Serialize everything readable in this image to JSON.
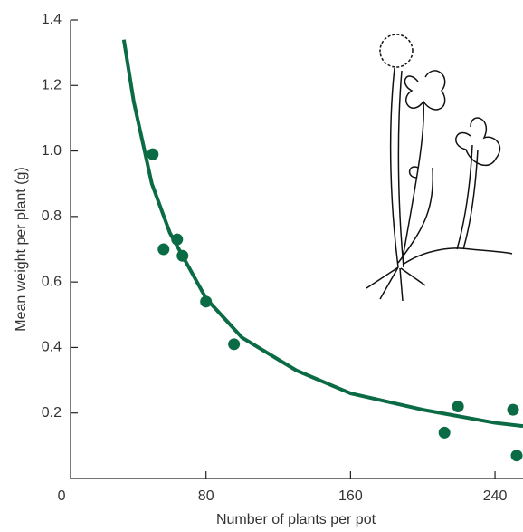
{
  "chart_data": {
    "type": "scatter",
    "x_label": "Number of plants per pot",
    "y_label": "Mean weight per plant (g)",
    "xlim": [
      5,
      255.5
    ],
    "ylim": [
      0,
      1.4
    ],
    "xticks": [
      0,
      80,
      160,
      240
    ],
    "yticks": [
      0.2,
      0.4,
      0.6,
      0.8,
      {
        "value": 1.0,
        "label": "1.0"
      },
      1.2,
      1.4
    ],
    "series": [
      {
        "type": "scatter",
        "color": "#0b6b45",
        "x": [
          50.5,
          56.5,
          64,
          67,
          80,
          95.5,
          212,
          219.5,
          250,
          252
        ],
        "values": [
          0.99,
          0.7,
          0.73,
          0.68,
          0.54,
          0.41,
          0.14,
          0.22,
          0.21,
          0.07
        ]
      },
      {
        "type": "line",
        "color": "#0b6b45",
        "x": [
          34.5,
          40,
          50,
          60,
          80,
          100,
          130,
          160,
          200,
          240,
          255.5
        ],
        "values": [
          1.34,
          1.15,
          0.9,
          0.75,
          0.55,
          0.43,
          0.33,
          0.26,
          0.21,
          0.17,
          0.16
        ]
      }
    ]
  }
}
